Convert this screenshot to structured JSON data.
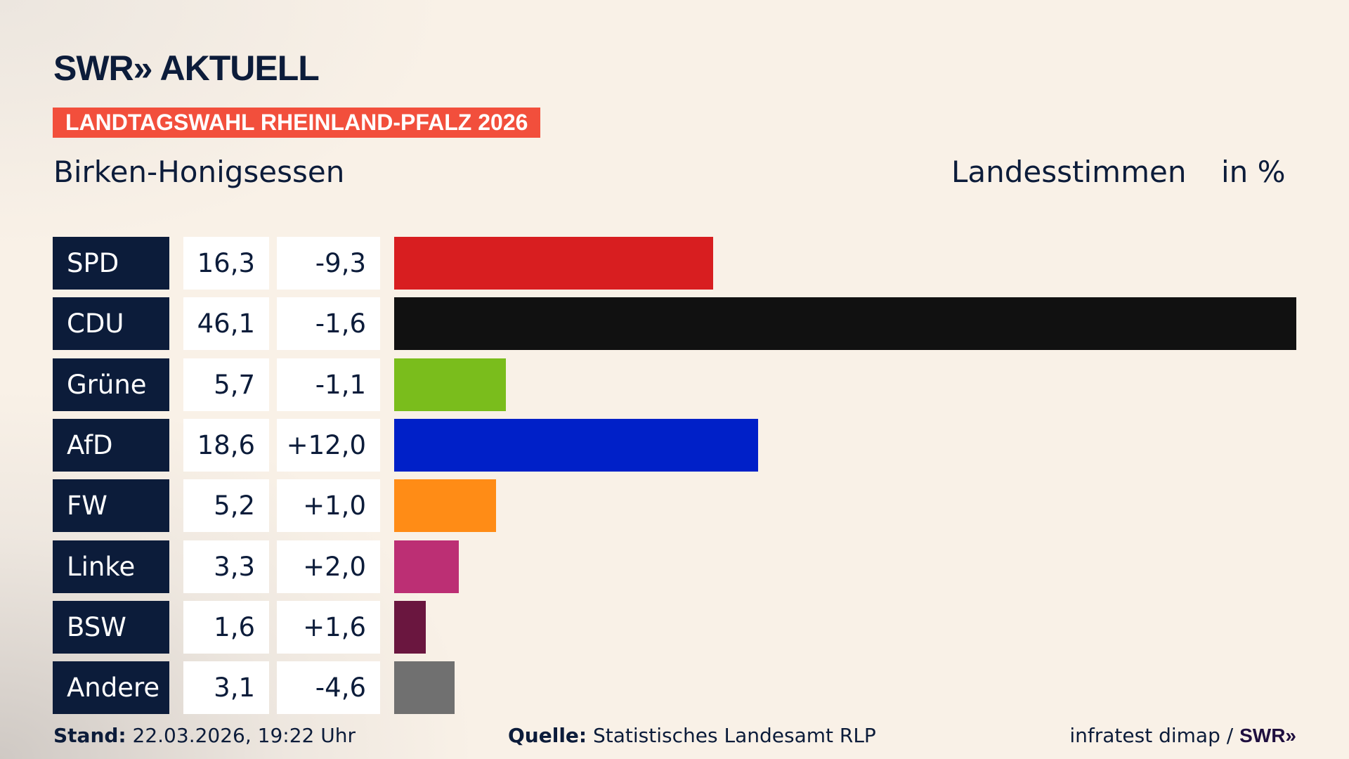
{
  "header": {
    "logo": "SWR» AKTUELL",
    "badge": "LANDTAGSWAHL RHEINLAND-PFALZ 2026",
    "location": "Birken-Honigsessen",
    "vote_type": "Landesstimmen",
    "unit": "in %"
  },
  "chart_data": {
    "type": "bar",
    "orientation": "horizontal",
    "xlim": [
      0,
      46.1
    ],
    "categories": [
      "SPD",
      "CDU",
      "Grüne",
      "AfD",
      "FW",
      "Linke",
      "BSW",
      "Andere"
    ],
    "values": [
      16.3,
      46.1,
      5.7,
      18.6,
      5.2,
      3.3,
      1.6,
      3.1
    ],
    "value_labels": [
      "16,3",
      "46,1",
      "5,7",
      "18,6",
      "5,2",
      "3,3",
      "1,6",
      "3,1"
    ],
    "changes": [
      -9.3,
      -1.6,
      -1.1,
      12.0,
      1.0,
      2.0,
      1.6,
      -4.6
    ],
    "change_labels": [
      "-9,3",
      "-1,6",
      "-1,1",
      "+12,0",
      "+1,0",
      "+2,0",
      "+1,6",
      "-4,6"
    ],
    "colors": [
      "#d81e20",
      "#111111",
      "#7abd1c",
      "#0020c8",
      "#ff8c16",
      "#bc2f74",
      "#6a163f",
      "#707070"
    ]
  },
  "footer": {
    "stand_label": "Stand:",
    "stand_value": "22.03.2026, 19:22 Uhr",
    "source_label": "Quelle:",
    "source_value": "Statistisches Landesamt RLP",
    "credit": "infratest dimap / ",
    "credit_logo": "SWR»"
  }
}
